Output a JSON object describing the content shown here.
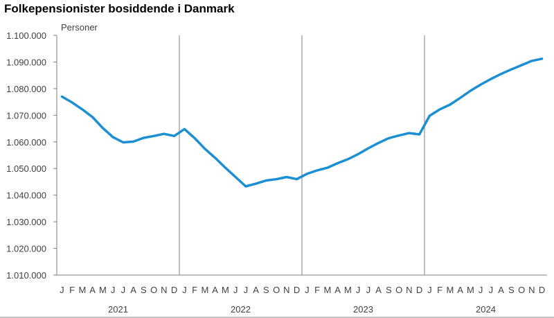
{
  "chart_data": {
    "type": "line",
    "title": "Folkepensionister bosiddende i Danmark",
    "ylabel": "Personer",
    "xlabel": "",
    "ylim": [
      1010000,
      1100000
    ],
    "yticks": [
      1010000,
      1020000,
      1030000,
      1040000,
      1050000,
      1060000,
      1070000,
      1080000,
      1090000,
      1100000
    ],
    "ytick_labels": [
      "1.010.000",
      "1.020.000",
      "1.030.000",
      "1.040.000",
      "1.050.000",
      "1.060.000",
      "1.070.000",
      "1.080.000",
      "1.090.000",
      "1.100.000"
    ],
    "month_labels": [
      "J",
      "F",
      "M",
      "A",
      "M",
      "J",
      "J",
      "A",
      "S",
      "O",
      "N",
      "D",
      "J",
      "F",
      "M",
      "A",
      "M",
      "J",
      "J",
      "A",
      "S",
      "O",
      "N",
      "D",
      "J",
      "F",
      "M",
      "A",
      "M",
      "J",
      "J",
      "A",
      "S",
      "O",
      "N",
      "D",
      "J",
      "F",
      "M",
      "A",
      "M",
      "J",
      "J",
      "A",
      "S",
      "O",
      "N",
      "D"
    ],
    "years": [
      "2021",
      "2022",
      "2023",
      "2024"
    ],
    "grid": false,
    "legend": "none",
    "colors": {
      "line": "#1a8fd1",
      "axis": "#7f7f7f",
      "text": "#404040"
    },
    "series": [
      {
        "values": [
          1077000,
          1074800,
          1072200,
          1069300,
          1065200,
          1061800,
          1059800,
          1060100,
          1061500,
          1062200,
          1063000,
          1062200,
          1064800,
          1061400,
          1057400,
          1054000,
          1050300,
          1046800,
          1043300,
          1044300,
          1045500,
          1046000,
          1046800,
          1046000,
          1048000,
          1049300,
          1050300,
          1052000,
          1053500,
          1055400,
          1057600,
          1059600,
          1061400,
          1062400,
          1063300,
          1062800,
          1069800,
          1072200,
          1074000,
          1076500,
          1079200,
          1081500,
          1083600,
          1085500,
          1087200,
          1088800,
          1090400,
          1091200
        ]
      }
    ]
  }
}
